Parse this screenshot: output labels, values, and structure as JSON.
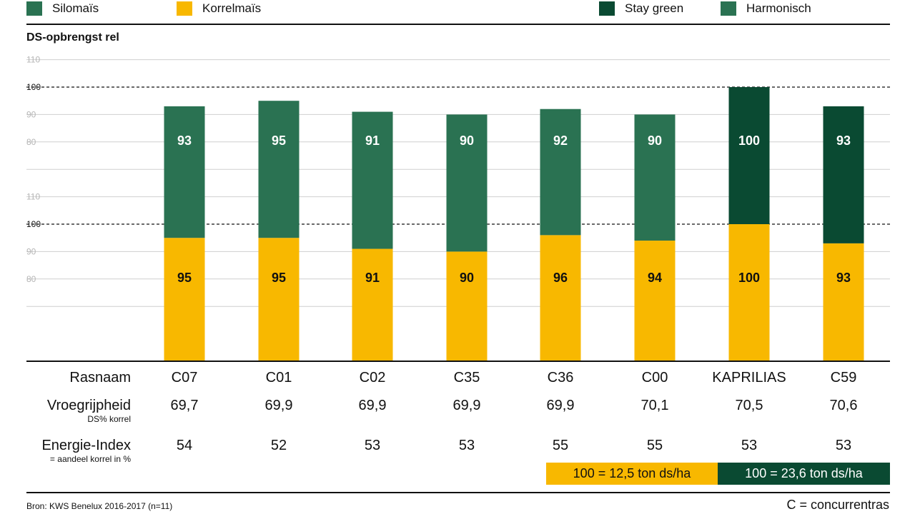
{
  "legend": {
    "silomais": {
      "label": "Silomaïs",
      "color": "#2a7252"
    },
    "korrelmais": {
      "label": "Korrelmaïs",
      "color": "#f8b800"
    },
    "staygreen": {
      "label": "Stay green",
      "color": "#0a4a32"
    },
    "harmonisch": {
      "label": "Harmonisch",
      "color": "#2a7252"
    }
  },
  "y_title": "DS-opbrengst rel",
  "chart_data": {
    "type": "bar",
    "title": "DS-opbrengst rel",
    "categories": [
      "C07",
      "C01",
      "C02",
      "C35",
      "C36",
      "C00",
      "KAPRILIAS",
      "C59"
    ],
    "upper_panel": {
      "name": "Silomaïs",
      "values": [
        93,
        95,
        91,
        90,
        92,
        90,
        100,
        93
      ],
      "colors": [
        "#2a7252",
        "#2a7252",
        "#2a7252",
        "#2a7252",
        "#2a7252",
        "#2a7252",
        "#0a4a32",
        "#0a4a32"
      ],
      "yticks": [
        "110",
        "100",
        "90",
        "80"
      ]
    },
    "lower_panel": {
      "name": "Korrelmaïs",
      "values": [
        95,
        95,
        91,
        90,
        96,
        94,
        100,
        93
      ],
      "color": "#f8b800",
      "yticks": [
        "110",
        "100",
        "90",
        "80"
      ]
    },
    "ylim": [
      60,
      110
    ],
    "reference_line": 100
  },
  "table": {
    "rasnaam": {
      "label": "Rasnaam",
      "values": [
        "C07",
        "C01",
        "C02",
        "C35",
        "C36",
        "C00",
        "KAPRILIAS",
        "C59"
      ]
    },
    "vroeg": {
      "label": "Vroegrijpheid",
      "sub": "DS% korrel",
      "values": [
        "69,7",
        "69,9",
        "69,9",
        "69,9",
        "69,9",
        "70,1",
        "70,5",
        "70,6"
      ]
    },
    "energie": {
      "label": "Energie-Index",
      "sub": "= aandeel korrel in %",
      "values": [
        "54",
        "52",
        "53",
        "53",
        "55",
        "55",
        "53",
        "53"
      ]
    }
  },
  "notes": {
    "korrel": "100 = 12,5 ton ds/ha",
    "silo": "100 = 23,6 ton ds/ha"
  },
  "footer": {
    "source": "Bron: KWS Benelux 2016-2017 (n=11)",
    "concurrent": "C = concurrentras"
  }
}
